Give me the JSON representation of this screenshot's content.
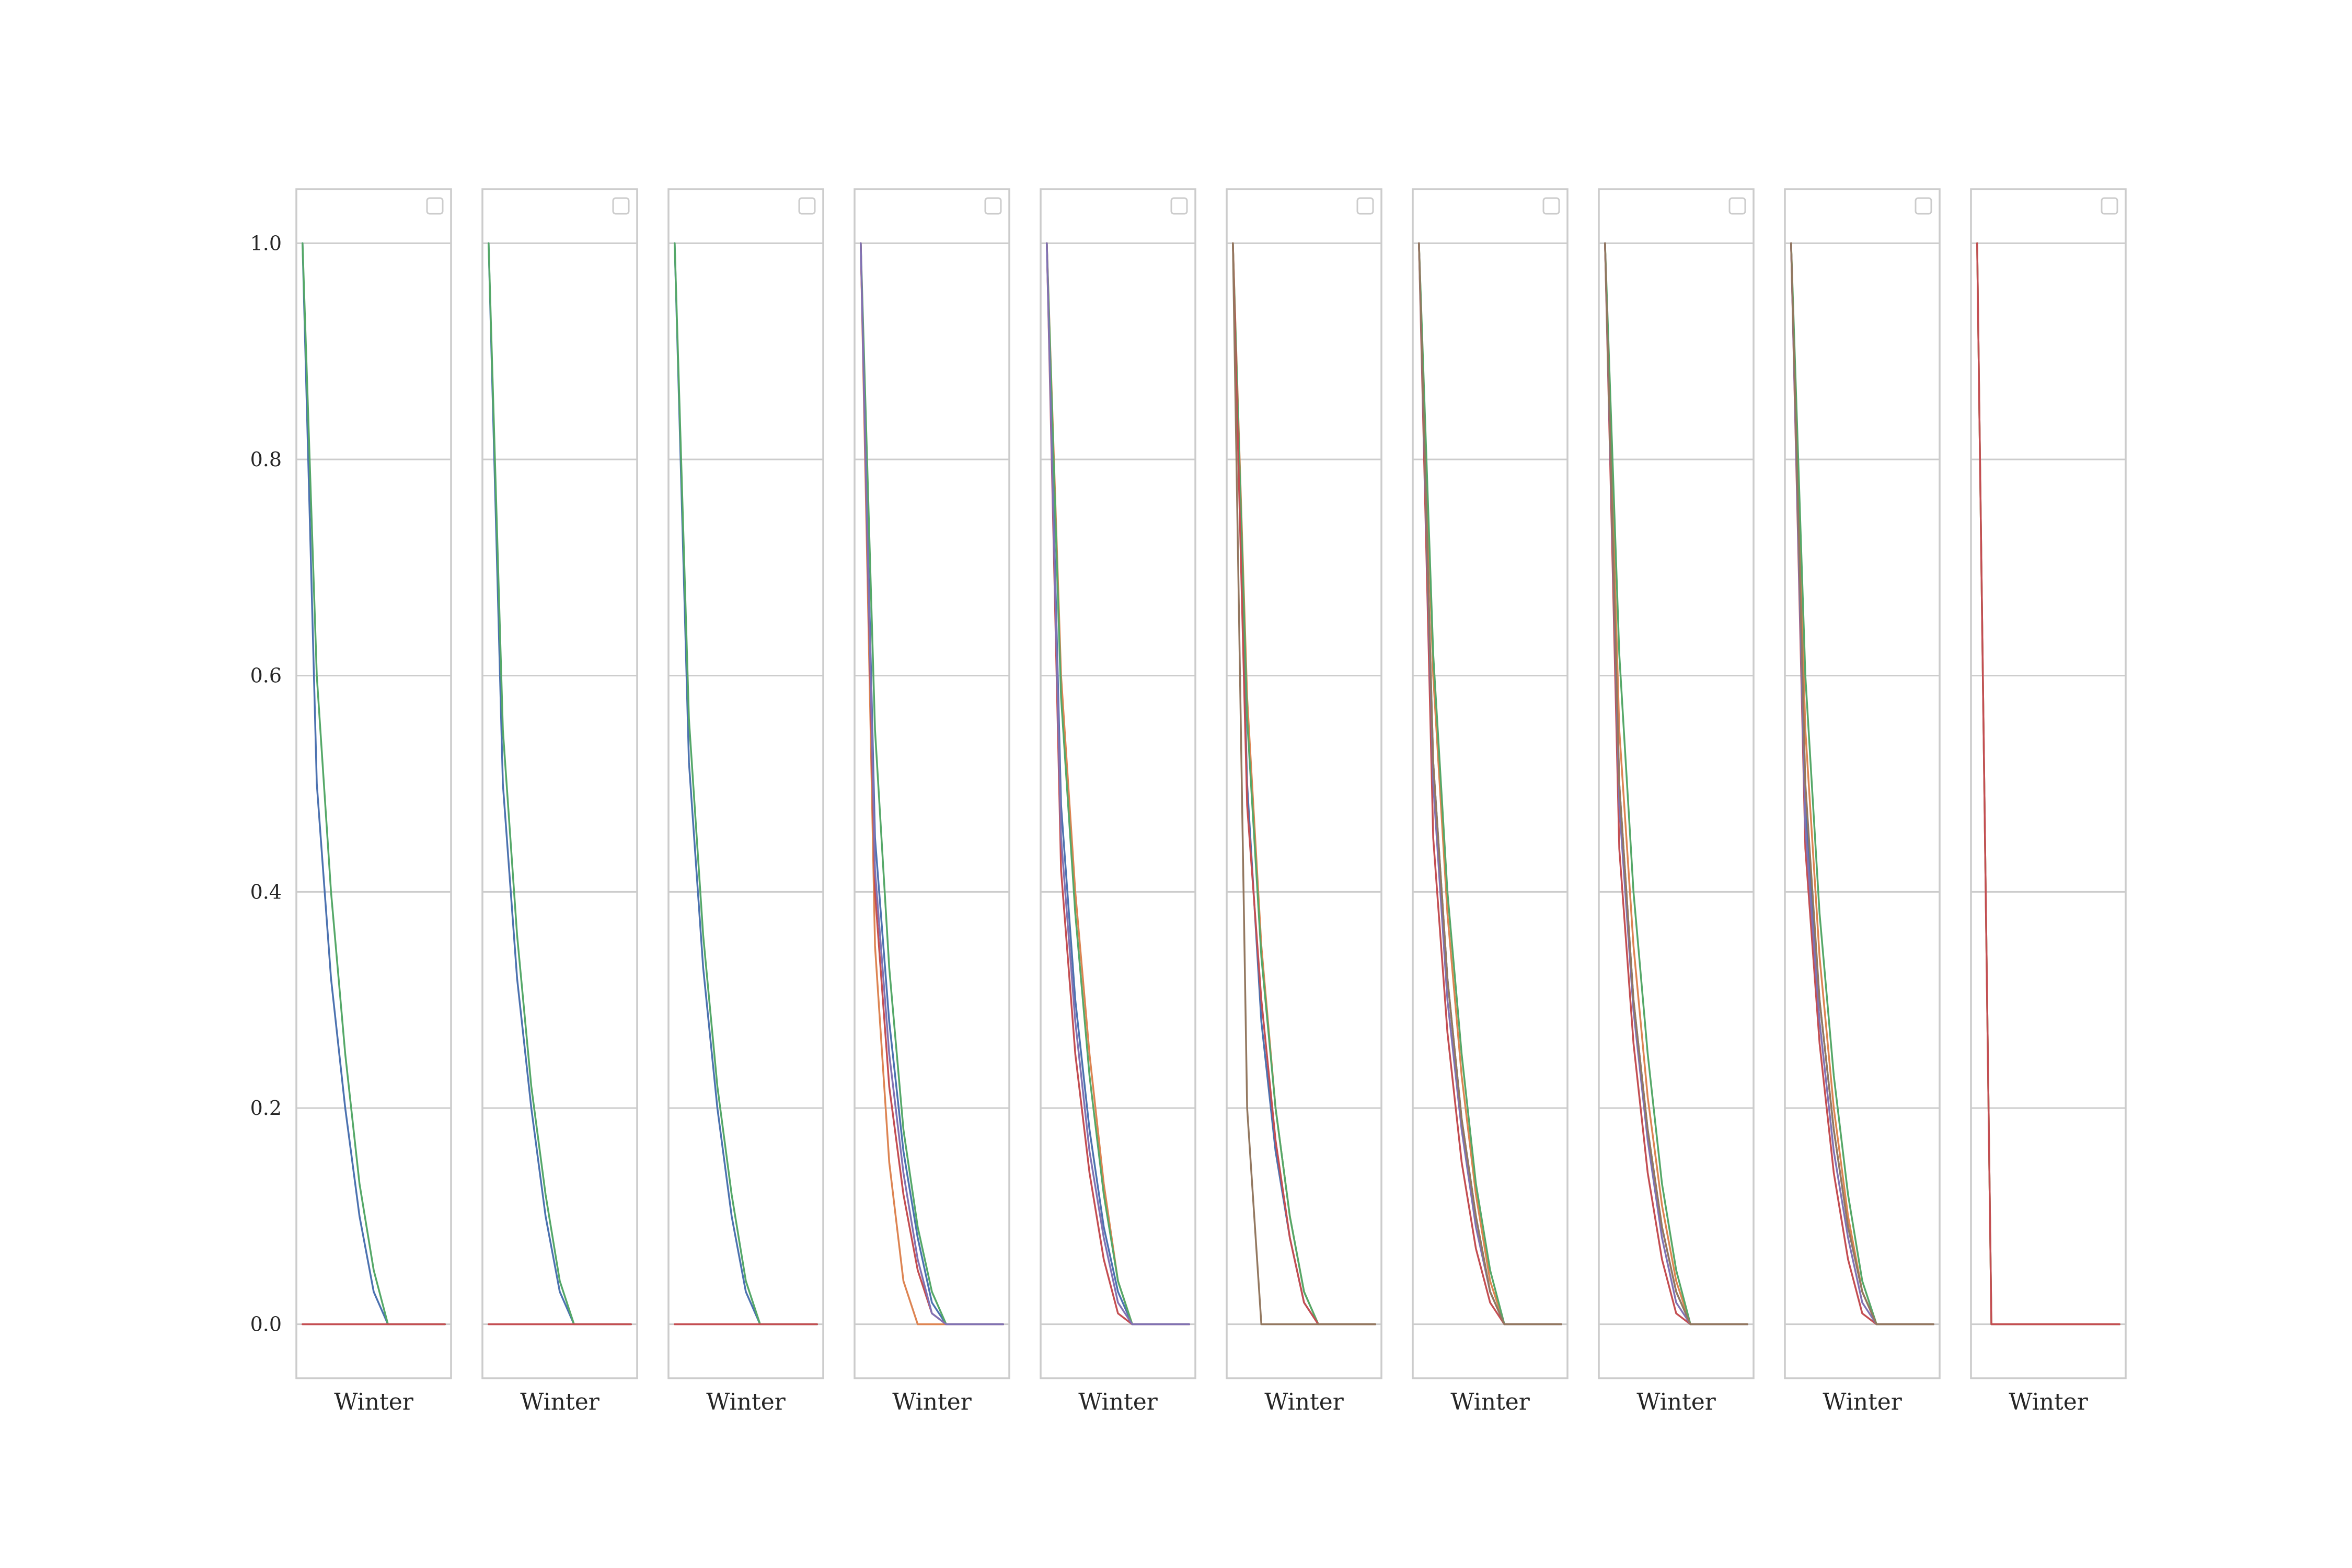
{
  "colors": {
    "series": [
      "#4c72b0",
      "#dd8452",
      "#55a868",
      "#c44e52",
      "#8172b3",
      "#937860"
    ],
    "grid": "#cccccc",
    "spine": "#cccccc",
    "legend_box": "#cccccc",
    "background": "#ffffff"
  },
  "chart_data": [
    {
      "type": "line",
      "title": "",
      "xlabel": "Winter",
      "ylabel": "",
      "ylim": [
        -0.05,
        1.05
      ],
      "yticks": [
        0.0,
        0.2,
        0.4,
        0.6,
        0.8,
        1.0
      ],
      "ytick_labels": [
        "0.0",
        "0.2",
        "0.4",
        "0.6",
        "0.8",
        "1.0"
      ],
      "grid": "horizontal",
      "legend": "top-right (empty)",
      "x": [
        0,
        0.1,
        0.2,
        0.3,
        0.4,
        0.5,
        0.6,
        0.7,
        0.8,
        0.9,
        1
      ],
      "series": [
        {
          "color": "#4c72b0",
          "values": [
            1,
            0.5,
            0.32,
            0.2,
            0.1,
            0.03,
            0,
            0,
            0,
            0,
            0
          ]
        },
        {
          "color": "#55a868",
          "values": [
            1,
            0.6,
            0.4,
            0.25,
            0.13,
            0.05,
            0,
            0,
            0,
            0,
            0
          ]
        },
        {
          "color": "#c44e52",
          "values": [
            0,
            0,
            0,
            0,
            0,
            0,
            0,
            0,
            0,
            0,
            0
          ]
        }
      ]
    },
    {
      "type": "line",
      "title": "",
      "xlabel": "Winter",
      "ylabel": "",
      "ylim": [
        -0.05,
        1.05
      ],
      "yticks": [
        0.0,
        0.2,
        0.4,
        0.6,
        0.8,
        1.0
      ],
      "ytick_labels": [
        "0.0",
        "0.2",
        "0.4",
        "0.6",
        "0.8",
        "1.0"
      ],
      "grid": "horizontal",
      "legend": "top-right (empty)",
      "x": [
        0,
        0.1,
        0.2,
        0.3,
        0.4,
        0.5,
        0.6,
        0.7,
        0.8,
        0.9,
        1
      ],
      "series": [
        {
          "color": "#4c72b0",
          "values": [
            1,
            0.5,
            0.32,
            0.2,
            0.1,
            0.03,
            0,
            0,
            0,
            0,
            0
          ]
        },
        {
          "color": "#55a868",
          "values": [
            1,
            0.55,
            0.36,
            0.22,
            0.12,
            0.04,
            0,
            0,
            0,
            0,
            0
          ]
        },
        {
          "color": "#c44e52",
          "values": [
            0,
            0,
            0,
            0,
            0,
            0,
            0,
            0,
            0,
            0,
            0
          ]
        }
      ]
    },
    {
      "type": "line",
      "title": "",
      "xlabel": "Winter",
      "ylabel": "",
      "ylim": [
        -0.05,
        1.05
      ],
      "yticks": [
        0.0,
        0.2,
        0.4,
        0.6,
        0.8,
        1.0
      ],
      "ytick_labels": [
        "0.0",
        "0.2",
        "0.4",
        "0.6",
        "0.8",
        "1.0"
      ],
      "grid": "horizontal",
      "legend": "top-right (empty)",
      "x": [
        0,
        0.1,
        0.2,
        0.3,
        0.4,
        0.5,
        0.6,
        0.7,
        0.8,
        0.9,
        1
      ],
      "series": [
        {
          "color": "#4c72b0",
          "values": [
            1,
            0.52,
            0.33,
            0.2,
            0.1,
            0.03,
            0,
            0,
            0,
            0,
            0
          ]
        },
        {
          "color": "#55a868",
          "values": [
            1,
            0.56,
            0.36,
            0.22,
            0.12,
            0.04,
            0,
            0,
            0,
            0,
            0
          ]
        },
        {
          "color": "#c44e52",
          "values": [
            0,
            0,
            0,
            0,
            0,
            0,
            0,
            0,
            0,
            0,
            0
          ]
        }
      ]
    },
    {
      "type": "line",
      "title": "",
      "xlabel": "Winter",
      "ylabel": "",
      "ylim": [
        -0.05,
        1.05
      ],
      "yticks": [
        0.0,
        0.2,
        0.4,
        0.6,
        0.8,
        1.0
      ],
      "ytick_labels": [
        "0.0",
        "0.2",
        "0.4",
        "0.6",
        "0.8",
        "1.0"
      ],
      "grid": "horizontal",
      "legend": "top-right (empty)",
      "x": [
        0,
        0.1,
        0.2,
        0.3,
        0.4,
        0.5,
        0.6,
        0.7,
        0.8,
        0.9,
        1
      ],
      "series": [
        {
          "color": "#4c72b0",
          "values": [
            1,
            0.45,
            0.28,
            0.16,
            0.08,
            0.02,
            0,
            0,
            0,
            0,
            0
          ]
        },
        {
          "color": "#dd8452",
          "values": [
            1,
            0.35,
            0.15,
            0.04,
            0,
            0,
            0,
            0,
            0,
            0,
            0
          ]
        },
        {
          "color": "#55a868",
          "values": [
            1,
            0.55,
            0.33,
            0.18,
            0.09,
            0.03,
            0,
            0,
            0,
            0,
            0
          ]
        },
        {
          "color": "#c44e52",
          "values": [
            1,
            0.4,
            0.22,
            0.12,
            0.05,
            0.01,
            0,
            0,
            0,
            0,
            0
          ]
        },
        {
          "color": "#8172b3",
          "values": [
            1,
            0.42,
            0.25,
            0.14,
            0.06,
            0.01,
            0,
            0,
            0,
            0,
            0
          ]
        }
      ]
    },
    {
      "type": "line",
      "title": "",
      "xlabel": "Winter",
      "ylabel": "",
      "ylim": [
        -0.05,
        1.05
      ],
      "yticks": [
        0.0,
        0.2,
        0.4,
        0.6,
        0.8,
        1.0
      ],
      "ytick_labels": [
        "0.0",
        "0.2",
        "0.4",
        "0.6",
        "0.8",
        "1.0"
      ],
      "grid": "horizontal",
      "legend": "top-right (empty)",
      "x": [
        0,
        0.1,
        0.2,
        0.3,
        0.4,
        0.5,
        0.6,
        0.7,
        0.8,
        0.9,
        1
      ],
      "series": [
        {
          "color": "#4c72b0",
          "values": [
            1,
            0.48,
            0.3,
            0.18,
            0.09,
            0.03,
            0,
            0,
            0,
            0,
            0
          ]
        },
        {
          "color": "#dd8452",
          "values": [
            1,
            0.6,
            0.4,
            0.25,
            0.13,
            0.04,
            0,
            0,
            0,
            0,
            0
          ]
        },
        {
          "color": "#55a868",
          "values": [
            1,
            0.58,
            0.38,
            0.23,
            0.12,
            0.04,
            0,
            0,
            0,
            0,
            0
          ]
        },
        {
          "color": "#c44e52",
          "values": [
            1,
            0.42,
            0.25,
            0.14,
            0.06,
            0.01,
            0,
            0,
            0,
            0,
            0
          ]
        },
        {
          "color": "#8172b3",
          "values": [
            1,
            0.45,
            0.28,
            0.16,
            0.08,
            0.02,
            0,
            0,
            0,
            0,
            0
          ]
        }
      ]
    },
    {
      "type": "line",
      "title": "",
      "xlabel": "Winter",
      "ylabel": "",
      "ylim": [
        -0.05,
        1.05
      ],
      "yticks": [
        0.0,
        0.2,
        0.4,
        0.6,
        0.8,
        1.0
      ],
      "ytick_labels": [
        "0.0",
        "0.2",
        "0.4",
        "0.6",
        "0.8",
        "1.0"
      ],
      "grid": "horizontal",
      "legend": "top-right (empty)",
      "x": [
        0,
        0.1,
        0.2,
        0.3,
        0.4,
        0.5,
        0.6,
        0.7,
        0.8,
        0.9,
        1
      ],
      "series": [
        {
          "color": "#4c72b0",
          "values": [
            1,
            0.5,
            0.28,
            0.16,
            0.08,
            0.02,
            0,
            0,
            0,
            0,
            0
          ]
        },
        {
          "color": "#dd8452",
          "values": [
            1,
            0.58,
            0.35,
            0.2,
            0.1,
            0.03,
            0,
            0,
            0,
            0,
            0
          ]
        },
        {
          "color": "#55a868",
          "values": [
            1,
            0.56,
            0.34,
            0.2,
            0.1,
            0.03,
            0,
            0,
            0,
            0,
            0
          ]
        },
        {
          "color": "#c44e52",
          "values": [
            1,
            0.48,
            0.3,
            0.17,
            0.08,
            0.02,
            0,
            0,
            0,
            0,
            0
          ]
        },
        {
          "color": "#937860",
          "values": [
            1,
            0.2,
            0,
            0,
            0,
            0,
            0,
            0,
            0,
            0,
            0
          ]
        }
      ]
    },
    {
      "type": "line",
      "title": "",
      "xlabel": "Winter",
      "ylabel": "",
      "ylim": [
        -0.05,
        1.05
      ],
      "yticks": [
        0.0,
        0.2,
        0.4,
        0.6,
        0.8,
        1.0
      ],
      "ytick_labels": [
        "0.0",
        "0.2",
        "0.4",
        "0.6",
        "0.8",
        "1.0"
      ],
      "grid": "horizontal",
      "legend": "top-right (empty)",
      "x": [
        0,
        0.1,
        0.2,
        0.3,
        0.4,
        0.5,
        0.6,
        0.7,
        0.8,
        0.9,
        1
      ],
      "series": [
        {
          "color": "#4c72b0",
          "values": [
            1,
            0.52,
            0.32,
            0.19,
            0.1,
            0.03,
            0,
            0,
            0,
            0,
            0
          ]
        },
        {
          "color": "#dd8452",
          "values": [
            1,
            0.6,
            0.38,
            0.23,
            0.12,
            0.04,
            0,
            0,
            0,
            0,
            0
          ]
        },
        {
          "color": "#55a868",
          "values": [
            1,
            0.62,
            0.4,
            0.25,
            0.13,
            0.05,
            0,
            0,
            0,
            0,
            0
          ]
        },
        {
          "color": "#c44e52",
          "values": [
            1,
            0.45,
            0.27,
            0.15,
            0.07,
            0.02,
            0,
            0,
            0,
            0,
            0
          ]
        },
        {
          "color": "#8172b3",
          "values": [
            1,
            0.5,
            0.3,
            0.18,
            0.09,
            0.03,
            0,
            0,
            0,
            0,
            0
          ]
        },
        {
          "color": "#937860",
          "values": [
            1,
            0.52,
            0.32,
            0.19,
            0.1,
            0.03,
            0,
            0,
            0,
            0,
            0
          ]
        }
      ]
    },
    {
      "type": "line",
      "title": "",
      "xlabel": "Winter",
      "ylabel": "",
      "ylim": [
        -0.05,
        1.05
      ],
      "yticks": [
        0.0,
        0.2,
        0.4,
        0.6,
        0.8,
        1.0
      ],
      "ytick_labels": [
        "0.0",
        "0.2",
        "0.4",
        "0.6",
        "0.8",
        "1.0"
      ],
      "grid": "horizontal",
      "legend": "top-right (empty)",
      "x": [
        0,
        0.1,
        0.2,
        0.3,
        0.4,
        0.5,
        0.6,
        0.7,
        0.8,
        0.9,
        1
      ],
      "series": [
        {
          "color": "#4c72b0",
          "values": [
            1,
            0.5,
            0.3,
            0.18,
            0.09,
            0.03,
            0,
            0,
            0,
            0,
            0
          ]
        },
        {
          "color": "#dd8452",
          "values": [
            1,
            0.55,
            0.35,
            0.21,
            0.11,
            0.04,
            0,
            0,
            0,
            0,
            0
          ]
        },
        {
          "color": "#55a868",
          "values": [
            1,
            0.62,
            0.4,
            0.25,
            0.13,
            0.05,
            0,
            0,
            0,
            0,
            0
          ]
        },
        {
          "color": "#c44e52",
          "values": [
            1,
            0.44,
            0.26,
            0.14,
            0.06,
            0.01,
            0,
            0,
            0,
            0,
            0
          ]
        },
        {
          "color": "#8172b3",
          "values": [
            1,
            0.48,
            0.29,
            0.17,
            0.08,
            0.02,
            0,
            0,
            0,
            0,
            0
          ]
        },
        {
          "color": "#937860",
          "values": [
            1,
            0.5,
            0.3,
            0.18,
            0.09,
            0.03,
            0,
            0,
            0,
            0,
            0
          ]
        }
      ]
    },
    {
      "type": "line",
      "title": "",
      "xlabel": "Winter",
      "ylabel": "",
      "ylim": [
        -0.05,
        1.05
      ],
      "yticks": [
        0.0,
        0.2,
        0.4,
        0.6,
        0.8,
        1.0
      ],
      "ytick_labels": [
        "0.0",
        "0.2",
        "0.4",
        "0.6",
        "0.8",
        "1.0"
      ],
      "grid": "horizontal",
      "legend": "top-right (empty)",
      "x": [
        0,
        0.1,
        0.2,
        0.3,
        0.4,
        0.5,
        0.6,
        0.7,
        0.8,
        0.9,
        1
      ],
      "series": [
        {
          "color": "#4c72b0",
          "values": [
            1,
            0.48,
            0.3,
            0.18,
            0.09,
            0.03,
            0,
            0,
            0,
            0,
            0
          ]
        },
        {
          "color": "#dd8452",
          "values": [
            1,
            0.55,
            0.34,
            0.2,
            0.1,
            0.03,
            0,
            0,
            0,
            0,
            0
          ]
        },
        {
          "color": "#55a868",
          "values": [
            1,
            0.6,
            0.38,
            0.23,
            0.12,
            0.04,
            0,
            0,
            0,
            0,
            0
          ]
        },
        {
          "color": "#c44e52",
          "values": [
            1,
            0.44,
            0.26,
            0.14,
            0.06,
            0.01,
            0,
            0,
            0,
            0,
            0
          ]
        },
        {
          "color": "#8172b3",
          "values": [
            1,
            0.46,
            0.28,
            0.16,
            0.08,
            0.02,
            0,
            0,
            0,
            0,
            0
          ]
        },
        {
          "color": "#937860",
          "values": [
            1,
            0.5,
            0.3,
            0.18,
            0.09,
            0.03,
            0,
            0,
            0,
            0,
            0
          ]
        }
      ]
    },
    {
      "type": "line",
      "title": "",
      "xlabel": "Winter",
      "ylabel": "",
      "ylim": [
        -0.05,
        1.05
      ],
      "yticks": [
        0.0,
        0.2,
        0.4,
        0.6,
        0.8,
        1.0
      ],
      "ytick_labels": [
        "0.0",
        "0.2",
        "0.4",
        "0.6",
        "0.8",
        "1.0"
      ],
      "grid": "horizontal",
      "legend": "top-right (empty)",
      "x": [
        0,
        0.1,
        0.2,
        0.3,
        0.4,
        0.5,
        0.6,
        0.7,
        0.8,
        0.9,
        1
      ],
      "series": [
        {
          "color": "#dd8452",
          "values": [
            1,
            0,
            0,
            0,
            0,
            0,
            0,
            0,
            0,
            0,
            0
          ]
        },
        {
          "color": "#55a868",
          "values": [
            1,
            0,
            0,
            0,
            0,
            0,
            0,
            0,
            0,
            0,
            0
          ]
        },
        {
          "color": "#c44e52",
          "values": [
            1,
            0,
            0,
            0,
            0,
            0,
            0,
            0,
            0,
            0,
            0
          ]
        }
      ]
    }
  ]
}
